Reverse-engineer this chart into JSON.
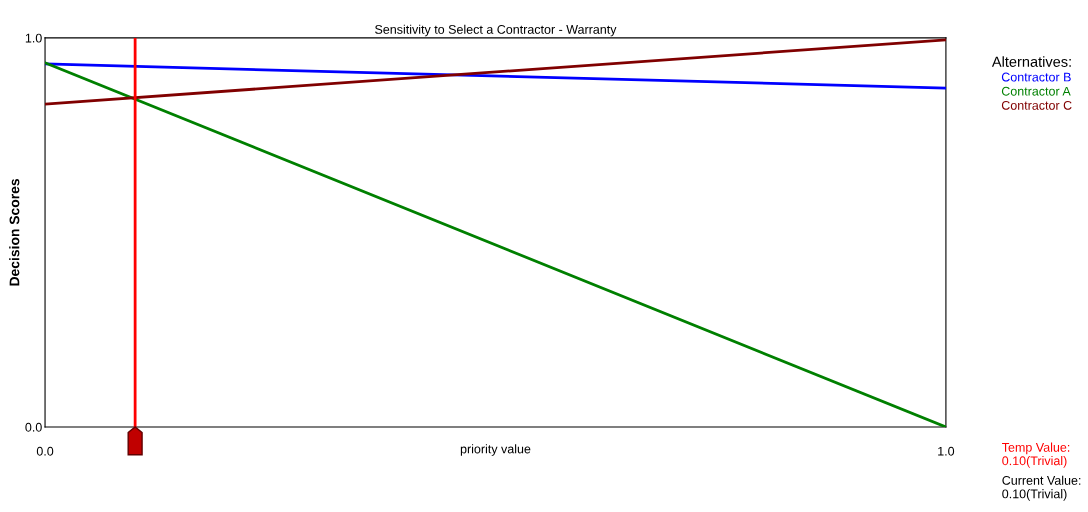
{
  "chart_data": {
    "type": "line",
    "title": "Sensitivity to Select a Contractor - Warranty",
    "xlabel": "priority value",
    "ylabel": "Decision Scores",
    "legend_title": "Alternatives:",
    "legend": "top right",
    "grid": false,
    "marker": "none",
    "line_style": "solid",
    "xlim": [
      0,
      1
    ],
    "xticks": [
      {
        "value": 0,
        "label": "0.0"
      },
      {
        "value": 1,
        "label": "1.0"
      }
    ],
    "ylim": [
      0,
      1
    ],
    "yticks": [
      {
        "value": 0,
        "label": "0.0"
      },
      {
        "value": 1,
        "label": "1.0"
      }
    ],
    "x": [
      0,
      1
    ],
    "series": [
      {
        "name": "Contractor B",
        "color": "#0000ff",
        "values": [
          0.933,
          0.871
        ]
      },
      {
        "name": "Contractor A",
        "color": "#008000",
        "values": [
          0.936,
          0
        ]
      },
      {
        "name": "Contractor C",
        "color": "#800000",
        "values": [
          0.83,
          0.995
        ]
      }
    ],
    "ref_lines": [
      {
        "axis": "x",
        "value": 0.1,
        "color": "#ff0000"
      }
    ],
    "annotations": [
      "Temp Value:\n0.10(Trivial)",
      "Current Value:\n0.10(Trivial)"
    ]
  }
}
